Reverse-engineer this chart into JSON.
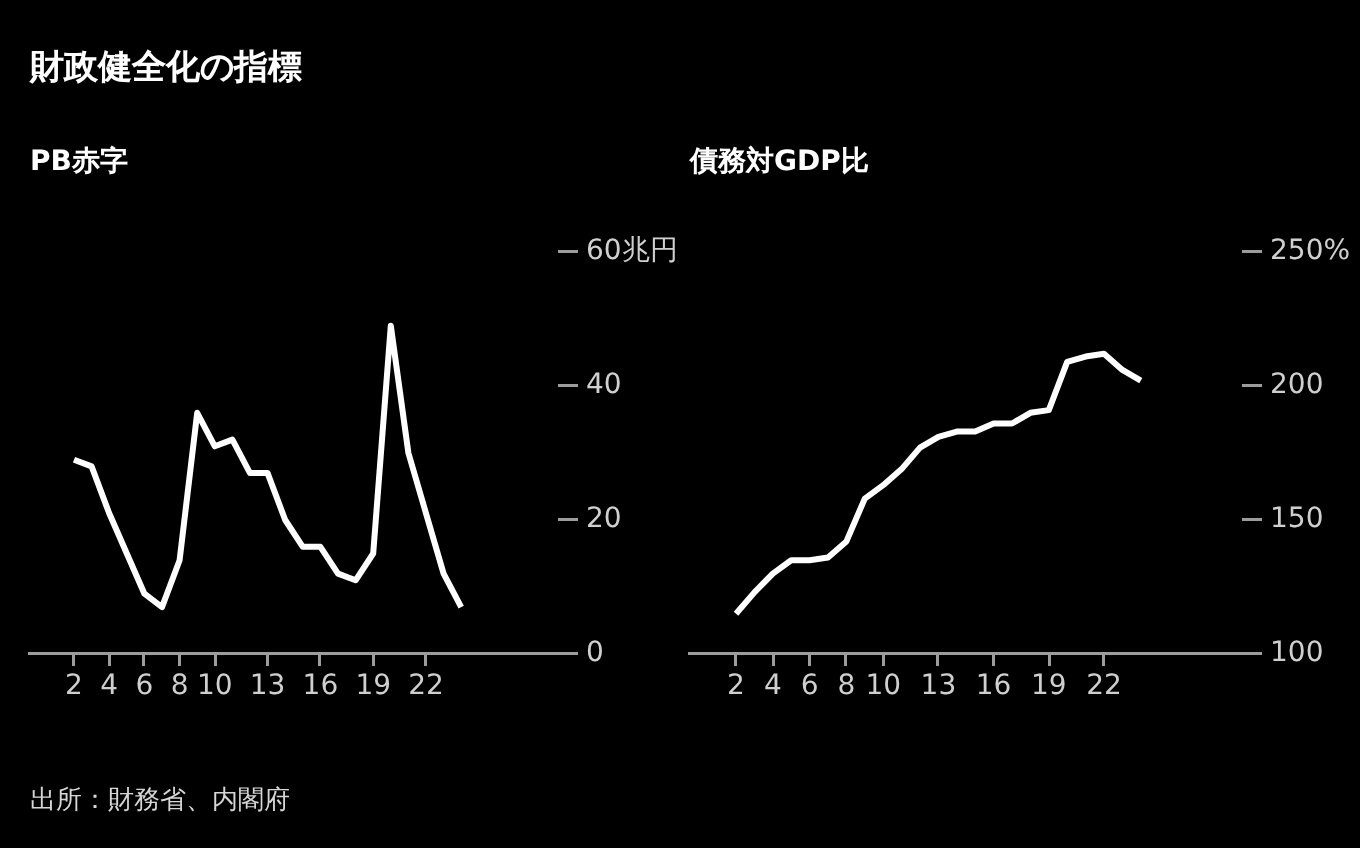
{
  "chart_data": [
    {
      "type": "line",
      "title": "財政健全化の指標",
      "subtitle": "PB赤字",
      "annotations": [
        "出所：財務省、内閣府"
      ],
      "x": [
        2,
        3,
        4,
        5,
        6,
        7,
        8,
        9,
        10,
        11,
        12,
        13,
        14,
        15,
        16,
        17,
        18,
        19,
        20,
        21,
        22,
        23,
        24
      ],
      "values": [
        29,
        28,
        21,
        15,
        9,
        7,
        14,
        36,
        31,
        32,
        27,
        27,
        20,
        16,
        16,
        12,
        11,
        15,
        49,
        30,
        21,
        12,
        7
      ],
      "color": "#ffffff",
      "xlim": [
        -0.5,
        29.5
      ],
      "xticks": [
        2,
        4,
        6,
        8,
        10,
        13,
        16,
        19,
        22
      ],
      "ylim": [
        0,
        60
      ],
      "yticks": [
        0,
        20,
        40,
        {
          "value": 60,
          "label": "60兆円"
        }
      ]
    },
    {
      "type": "line",
      "title": "債務対GDP比",
      "x": [
        2,
        3,
        4,
        5,
        6,
        7,
        8,
        9,
        10,
        11,
        12,
        13,
        14,
        15,
        16,
        17,
        18,
        19,
        20,
        21,
        22,
        23,
        24
      ],
      "values": [
        115,
        123,
        130,
        135,
        135,
        136,
        142,
        158,
        163,
        169,
        177,
        181,
        183,
        183,
        186,
        186,
        190,
        191,
        209,
        211,
        212,
        206,
        202
      ],
      "color": "#ffffff",
      "xlim": [
        -0.5,
        29.5
      ],
      "xticks": [
        2,
        4,
        6,
        8,
        10,
        13,
        16,
        19,
        22
      ],
      "ylim": [
        100,
        250
      ],
      "yticks": [
        100,
        150,
        200,
        {
          "value": 250,
          "label": "250%"
        }
      ]
    }
  ]
}
